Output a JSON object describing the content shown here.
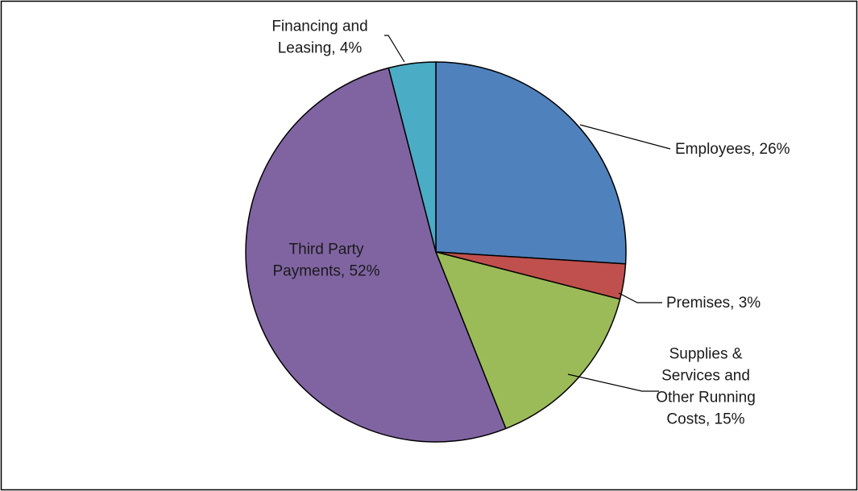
{
  "chart_data": {
    "type": "pie",
    "title": "",
    "start_angle_deg": 0,
    "direction": "clockwise",
    "slices": [
      {
        "name": "Employees",
        "value": 26,
        "label_lines": [
          "Employees, 26%"
        ],
        "color": "#4f81bd"
      },
      {
        "name": "Premises",
        "value": 3,
        "label_lines": [
          "Premises, 3%"
        ],
        "color": "#c0504d"
      },
      {
        "name": "Supplies & Services and Other Running Costs",
        "value": 15,
        "label_lines": [
          "Supplies &",
          "Services and",
          "Other Running",
          "Costs, 15%"
        ],
        "color": "#9bbb59"
      },
      {
        "name": "Third Party Payments",
        "value": 52,
        "label_lines": [
          "Third Party",
          "Payments, 52%"
        ],
        "color": "#8064a2"
      },
      {
        "name": "Financing and Leasing",
        "value": 4,
        "label_lines": [
          "Financing and",
          "Leasing, 4%"
        ],
        "color": "#4bacc6"
      }
    ],
    "legend": "none",
    "border": true
  }
}
